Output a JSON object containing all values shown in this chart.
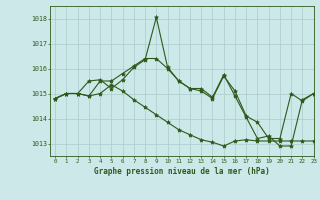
{
  "title": "Graphe pression niveau de la mer (hPa)",
  "bg_color": "#cce8e8",
  "line_color": "#2d5a1b",
  "grid_color": "#aacccc",
  "xlim": [
    -0.5,
    23
  ],
  "ylim": [
    1012.5,
    1018.5
  ],
  "yticks": [
    1013,
    1014,
    1015,
    1016,
    1017,
    1018
  ],
  "xticks": [
    0,
    1,
    2,
    3,
    4,
    5,
    6,
    7,
    8,
    9,
    10,
    11,
    12,
    13,
    14,
    15,
    16,
    17,
    18,
    19,
    20,
    21,
    22,
    23
  ],
  "series": [
    {
      "x": [
        0,
        1,
        2,
        3,
        4,
        5,
        6,
        7,
        8,
        9,
        10,
        11,
        12,
        13,
        14,
        15,
        16,
        17,
        18,
        19,
        20,
        21,
        22,
        23
      ],
      "y": [
        1014.8,
        1015.0,
        1015.0,
        1015.5,
        1015.55,
        1015.2,
        1015.55,
        1016.05,
        1016.35,
        1018.05,
        1016.05,
        1015.5,
        1015.2,
        1015.2,
        1014.85,
        1015.75,
        1014.9,
        1014.05,
        1013.2,
        1013.3,
        1012.9,
        1012.9,
        1014.75,
        1015.0
      ]
    },
    {
      "x": [
        0,
        1,
        2,
        3,
        4,
        5,
        6,
        7,
        8,
        9,
        10,
        11,
        12,
        13,
        14,
        15,
        16,
        17,
        18,
        19,
        20,
        21,
        22,
        23
      ],
      "y": [
        1014.8,
        1015.0,
        1015.0,
        1014.9,
        1015.5,
        1015.5,
        1015.8,
        1016.1,
        1016.4,
        1016.4,
        1016.0,
        1015.5,
        1015.2,
        1015.1,
        1014.8,
        1015.7,
        1015.1,
        1014.1,
        1013.85,
        1013.2,
        1013.2,
        1015.0,
        1014.7,
        1015.0
      ]
    },
    {
      "x": [
        0,
        1,
        2,
        3,
        4,
        5,
        6,
        7,
        8,
        9,
        10,
        11,
        12,
        13,
        14,
        15,
        16,
        17,
        18,
        19,
        20,
        21,
        22,
        23
      ],
      "y": [
        1014.8,
        1015.0,
        1015.0,
        1014.9,
        1015.0,
        1015.35,
        1015.1,
        1014.75,
        1014.45,
        1014.15,
        1013.85,
        1013.55,
        1013.35,
        1013.15,
        1013.05,
        1012.9,
        1013.1,
        1013.15,
        1013.1,
        1013.1,
        1013.1,
        1013.1,
        1013.1,
        1013.1
      ]
    }
  ]
}
